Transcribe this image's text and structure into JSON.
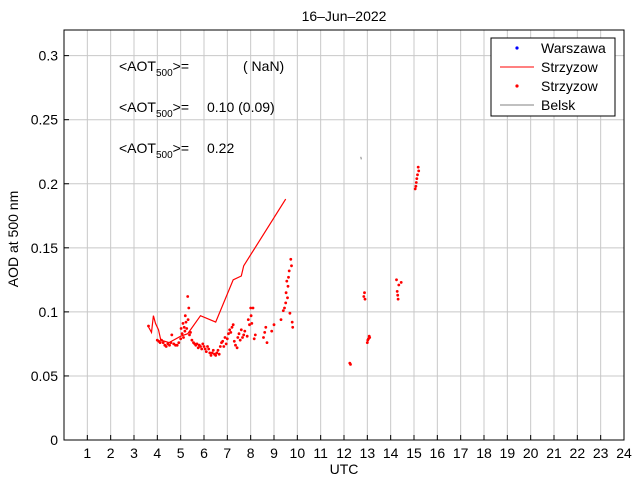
{
  "chart_data": {
    "type": "scatter",
    "title": "16–Jun–2022",
    "xlabel": "UTC",
    "ylabel": "AOD at 500 nm",
    "xlim": [
      0,
      24
    ],
    "ylim": [
      0,
      0.32
    ],
    "grid": true,
    "x_ticks": [
      1,
      2,
      3,
      4,
      5,
      6,
      7,
      8,
      9,
      10,
      11,
      12,
      13,
      14,
      15,
      16,
      17,
      18,
      19,
      20,
      21,
      22,
      23,
      24
    ],
    "y_ticks": [
      0,
      0.05,
      0.1,
      0.15,
      0.2,
      0.25,
      0.3
    ],
    "y_tick_labels": [
      "0",
      "0.05",
      "0.1",
      "0.15",
      "0.2",
      "0.25",
      "0.3"
    ],
    "legend": {
      "position": "top-right",
      "entries": [
        {
          "label": "Warszawa",
          "style": "dot",
          "color": "#0000ff"
        },
        {
          "label": "Strzyzow",
          "style": "line",
          "color": "#ff0000"
        },
        {
          "label": "Strzyzow",
          "style": "dot",
          "color": "#ff0000"
        },
        {
          "label": "Belsk",
          "style": "line",
          "color": "#808080"
        }
      ]
    },
    "annotations": [
      {
        "prefix": "<AOT",
        "sub": "500",
        "suffix": ">=",
        "value": "( NaN)",
        "color": "#0000ff"
      },
      {
        "prefix": "<AOT",
        "sub": "500",
        "suffix": ">=",
        "value": "0.10 (0.09)",
        "color": "#ff0000"
      },
      {
        "prefix": "<AOT",
        "sub": "500",
        "suffix": ">=",
        "value": "0.22",
        "color": "#000000"
      }
    ],
    "series": [
      {
        "name": "Strzyzow",
        "style": "line",
        "color": "#ff0000",
        "points": [
          [
            3.6,
            0.089
          ],
          [
            3.75,
            0.084
          ],
          [
            3.83,
            0.097
          ],
          [
            3.92,
            0.091
          ],
          [
            4.05,
            0.086
          ],
          [
            4.15,
            0.078
          ],
          [
            4.5,
            0.076
          ],
          [
            5.0,
            0.081
          ],
          [
            5.3,
            0.083
          ],
          [
            5.85,
            0.097
          ],
          [
            6.5,
            0.092
          ],
          [
            7.25,
            0.125
          ],
          [
            7.6,
            0.128
          ],
          [
            7.7,
            0.136
          ],
          [
            9.5,
            0.188
          ]
        ]
      },
      {
        "name": "Strzyzow",
        "style": "dot",
        "color": "#ff0000",
        "points": [
          [
            3.62,
            0.089
          ],
          [
            4.0,
            0.078
          ],
          [
            4.06,
            0.077
          ],
          [
            4.12,
            0.076
          ],
          [
            4.18,
            0.078
          ],
          [
            4.25,
            0.076
          ],
          [
            4.32,
            0.074
          ],
          [
            4.38,
            0.073
          ],
          [
            4.45,
            0.075
          ],
          [
            4.52,
            0.074
          ],
          [
            4.58,
            0.076
          ],
          [
            4.62,
            0.082
          ],
          [
            4.7,
            0.075
          ],
          [
            4.78,
            0.074
          ],
          [
            4.85,
            0.074
          ],
          [
            4.92,
            0.076
          ],
          [
            5.0,
            0.079
          ],
          [
            5.02,
            0.087
          ],
          [
            5.06,
            0.083
          ],
          [
            5.1,
            0.091
          ],
          [
            5.12,
            0.08
          ],
          [
            5.15,
            0.088
          ],
          [
            5.18,
            0.085
          ],
          [
            5.2,
            0.097
          ],
          [
            5.23,
            0.092
          ],
          [
            5.26,
            0.087
          ],
          [
            5.3,
            0.112
          ],
          [
            5.32,
            0.094
          ],
          [
            5.35,
            0.103
          ],
          [
            5.38,
            0.082
          ],
          [
            5.42,
            0.084
          ],
          [
            5.48,
            0.078
          ],
          [
            5.55,
            0.076
          ],
          [
            5.6,
            0.075
          ],
          [
            5.65,
            0.074
          ],
          [
            5.7,
            0.075
          ],
          [
            5.75,
            0.072
          ],
          [
            5.8,
            0.074
          ],
          [
            5.85,
            0.073
          ],
          [
            5.9,
            0.071
          ],
          [
            5.95,
            0.075
          ],
          [
            6.0,
            0.073
          ],
          [
            6.05,
            0.071
          ],
          [
            6.1,
            0.069
          ],
          [
            6.15,
            0.073
          ],
          [
            6.2,
            0.071
          ],
          [
            6.25,
            0.068
          ],
          [
            6.3,
            0.066
          ],
          [
            6.35,
            0.068
          ],
          [
            6.4,
            0.07
          ],
          [
            6.45,
            0.067
          ],
          [
            6.5,
            0.066
          ],
          [
            6.55,
            0.068
          ],
          [
            6.6,
            0.07
          ],
          [
            6.65,
            0.067
          ],
          [
            6.7,
            0.073
          ],
          [
            6.75,
            0.076
          ],
          [
            6.8,
            0.077
          ],
          [
            6.85,
            0.073
          ],
          [
            6.9,
            0.08
          ],
          [
            6.95,
            0.075
          ],
          [
            7.0,
            0.079
          ],
          [
            7.05,
            0.083
          ],
          [
            7.1,
            0.086
          ],
          [
            7.15,
            0.084
          ],
          [
            7.2,
            0.088
          ],
          [
            7.25,
            0.09
          ],
          [
            7.3,
            0.077
          ],
          [
            7.35,
            0.074
          ],
          [
            7.42,
            0.072
          ],
          [
            7.45,
            0.08
          ],
          [
            7.5,
            0.083
          ],
          [
            7.55,
            0.078
          ],
          [
            7.6,
            0.086
          ],
          [
            7.65,
            0.08
          ],
          [
            7.7,
            0.082
          ],
          [
            7.75,
            0.085
          ],
          [
            7.85,
            0.081
          ],
          [
            7.9,
            0.094
          ],
          [
            7.95,
            0.09
          ],
          [
            8.0,
            0.103
          ],
          [
            8.02,
            0.097
          ],
          [
            8.05,
            0.091
          ],
          [
            8.1,
            0.103
          ],
          [
            8.15,
            0.079
          ],
          [
            8.2,
            0.082
          ],
          [
            8.55,
            0.08
          ],
          [
            8.6,
            0.084
          ],
          [
            8.65,
            0.088
          ],
          [
            8.7,
            0.076
          ],
          [
            8.9,
            0.085
          ],
          [
            9.0,
            0.09
          ],
          [
            9.3,
            0.094
          ],
          [
            9.4,
            0.101
          ],
          [
            9.45,
            0.103
          ],
          [
            9.5,
            0.107
          ],
          [
            9.52,
            0.115
          ],
          [
            9.55,
            0.124
          ],
          [
            9.58,
            0.111
          ],
          [
            9.6,
            0.12
          ],
          [
            9.62,
            0.127
          ],
          [
            9.65,
            0.132
          ],
          [
            9.68,
            0.099
          ],
          [
            9.72,
            0.141
          ],
          [
            9.75,
            0.136
          ],
          [
            9.78,
            0.092
          ],
          [
            9.8,
            0.088
          ],
          [
            12.25,
            0.06
          ],
          [
            12.28,
            0.059
          ],
          [
            12.85,
            0.112
          ],
          [
            12.88,
            0.115
          ],
          [
            12.9,
            0.11
          ],
          [
            13.0,
            0.076
          ],
          [
            13.02,
            0.078
          ],
          [
            13.05,
            0.079
          ],
          [
            13.08,
            0.081
          ],
          [
            13.1,
            0.08
          ],
          [
            14.25,
            0.125
          ],
          [
            14.28,
            0.116
          ],
          [
            14.3,
            0.113
          ],
          [
            14.32,
            0.11
          ],
          [
            14.35,
            0.121
          ],
          [
            14.45,
            0.123
          ],
          [
            15.05,
            0.196
          ],
          [
            15.08,
            0.198
          ],
          [
            15.1,
            0.201
          ],
          [
            15.12,
            0.204
          ],
          [
            15.15,
            0.207
          ],
          [
            15.18,
            0.213
          ],
          [
            15.2,
            0.21
          ]
        ]
      },
      {
        "name": "Warszawa",
        "style": "dot",
        "color": "#0000ff",
        "points": []
      },
      {
        "name": "Belsk",
        "style": "line",
        "color": "#808080",
        "points": [
          [
            12.72,
            0.221
          ],
          [
            12.74,
            0.219
          ]
        ]
      }
    ]
  }
}
